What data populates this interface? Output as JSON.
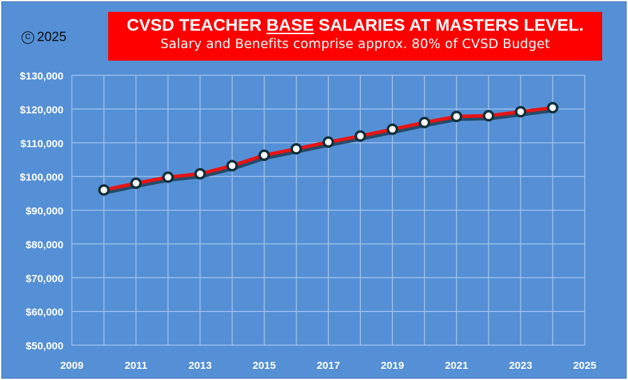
{
  "copyright": {
    "symbol": "C",
    "year": "2025"
  },
  "chart_data": {
    "type": "line",
    "title_parts": [
      "CVSD TEACHER ",
      "BASE",
      " SALARIES AT MASTERS LEVEL."
    ],
    "subtitle": "Salary and Benefits comprise approx. 80% of CVSD Budget",
    "xlabel": "",
    "ylabel": "",
    "xlim": [
      2009,
      2025
    ],
    "ylim": [
      50000,
      130000
    ],
    "x_ticks": [
      "2009",
      "2011",
      "2013",
      "2015",
      "2017",
      "2019",
      "2021",
      "2023",
      "2025"
    ],
    "y_ticks": [
      "$50,000",
      "$60,000",
      "$70,000",
      "$80,000",
      "$90,000",
      "$100,000",
      "$110,000",
      "$120,000",
      "$130,000"
    ],
    "grid": true,
    "legend": false,
    "line_color": "#e81414",
    "background_color": "#5590d6",
    "series": [
      {
        "x": [
          2010,
          2011,
          2012,
          2013,
          2014,
          2015,
          2016,
          2017,
          2018,
          2019,
          2020,
          2021,
          2022,
          2023,
          2024
        ],
        "values": [
          96000,
          98000,
          99800,
          100800,
          103200,
          106300,
          108200,
          110200,
          112000,
          114000,
          116000,
          117800,
          118000,
          119200,
          120400
        ]
      }
    ]
  }
}
